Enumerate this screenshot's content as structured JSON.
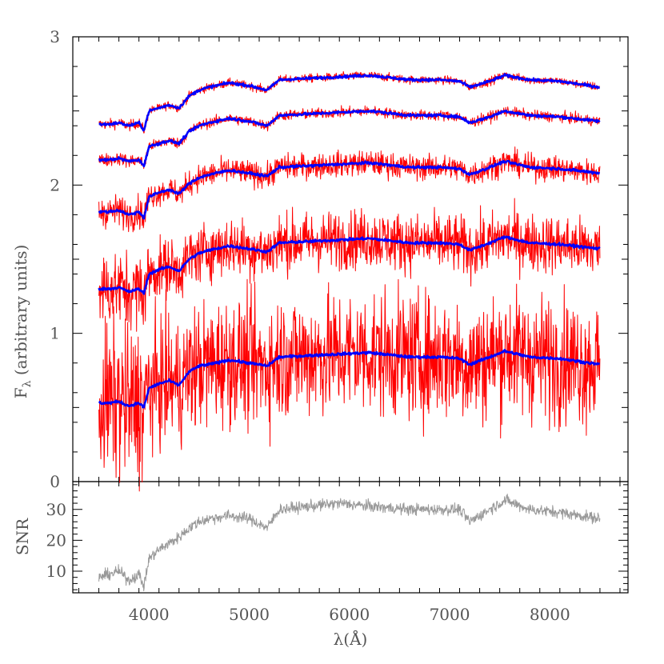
{
  "chart_data": [
    {
      "type": "line",
      "panel": "main",
      "title": "",
      "ylabel": "F_λ (arbitrary units)",
      "ylabel_main": "F",
      "ylabel_sub": "λ",
      "ylabel_rest": " (arbitrary units)",
      "xlabel": "",
      "xlim": [
        3240,
        8780
      ],
      "ylim": [
        0,
        3
      ],
      "yticks": [
        0,
        1,
        2,
        3
      ],
      "grid": false,
      "legend": "none",
      "colors": {
        "noisy": "#ff0000",
        "model": "#0000ff"
      },
      "x_range": [
        3500,
        8500
      ],
      "series": [
        {
          "model_knots": {
            "x": [
              3500,
              3600,
              3700,
              3800,
              3900,
              3950,
              4000,
              4100,
              4200,
              4300,
              4400,
              4500,
              4600,
              4800,
              5000,
              5180,
              5300,
              5600,
              5900,
              6200,
              6600,
              6900,
              7100,
              7200,
              7400,
              7550,
              7800,
              8100,
              8500
            ],
            "y": [
              2.41,
              2.41,
              2.42,
              2.4,
              2.42,
              2.37,
              2.5,
              2.52,
              2.54,
              2.52,
              2.6,
              2.64,
              2.66,
              2.69,
              2.67,
              2.64,
              2.71,
              2.72,
              2.73,
              2.74,
              2.71,
              2.71,
              2.7,
              2.66,
              2.7,
              2.74,
              2.71,
              2.7,
              2.66
            ]
          },
          "noise_amplitude": 0.02
        },
        {
          "model_knots": {
            "x": [
              3500,
              3600,
              3700,
              3800,
              3900,
              3950,
              4000,
              4100,
              4200,
              4300,
              4400,
              4500,
              4600,
              4800,
              5000,
              5180,
              5300,
              5600,
              5900,
              6200,
              6600,
              6900,
              7100,
              7200,
              7400,
              7550,
              7800,
              8100,
              8500
            ],
            "y": [
              2.17,
              2.17,
              2.18,
              2.16,
              2.17,
              2.13,
              2.26,
              2.28,
              2.3,
              2.28,
              2.36,
              2.4,
              2.42,
              2.45,
              2.43,
              2.4,
              2.47,
              2.48,
              2.49,
              2.5,
              2.47,
              2.47,
              2.46,
              2.42,
              2.46,
              2.5,
              2.47,
              2.46,
              2.43
            ]
          },
          "noise_amplitude": 0.025
        },
        {
          "model_knots": {
            "x": [
              3500,
              3600,
              3700,
              3800,
              3900,
              3950,
              4000,
              4100,
              4200,
              4300,
              4400,
              4500,
              4600,
              4800,
              5000,
              5180,
              5300,
              5600,
              5900,
              6200,
              6600,
              6900,
              7100,
              7200,
              7400,
              7550,
              7800,
              8100,
              8500
            ],
            "y": [
              1.82,
              1.82,
              1.83,
              1.8,
              1.82,
              1.78,
              1.92,
              1.95,
              1.97,
              1.94,
              2.01,
              2.05,
              2.07,
              2.1,
              2.08,
              2.06,
              2.12,
              2.13,
              2.14,
              2.15,
              2.12,
              2.12,
              2.11,
              2.07,
              2.12,
              2.16,
              2.12,
              2.11,
              2.08
            ]
          },
          "noise_amplitude": 0.06
        },
        {
          "model_knots": {
            "x": [
              3500,
              3600,
              3700,
              3800,
              3900,
              3950,
              4000,
              4100,
              4200,
              4300,
              4400,
              4500,
              4600,
              4800,
              5000,
              5180,
              5300,
              5600,
              5900,
              6200,
              6600,
              6900,
              7100,
              7200,
              7400,
              7550,
              7800,
              8100,
              8500
            ],
            "y": [
              1.3,
              1.3,
              1.31,
              1.28,
              1.3,
              1.27,
              1.4,
              1.43,
              1.45,
              1.42,
              1.5,
              1.54,
              1.56,
              1.59,
              1.57,
              1.55,
              1.61,
              1.62,
              1.63,
              1.64,
              1.61,
              1.61,
              1.6,
              1.56,
              1.61,
              1.65,
              1.61,
              1.6,
              1.57
            ]
          },
          "noise_amplitude": 0.14
        },
        {
          "model_knots": {
            "x": [
              3500,
              3600,
              3700,
              3800,
              3900,
              3950,
              4000,
              4100,
              4200,
              4300,
              4400,
              4500,
              4600,
              4800,
              5000,
              5180,
              5300,
              5600,
              5900,
              6200,
              6600,
              6900,
              7100,
              7200,
              7400,
              7550,
              7800,
              8100,
              8500
            ],
            "y": [
              0.53,
              0.53,
              0.54,
              0.51,
              0.53,
              0.5,
              0.63,
              0.66,
              0.68,
              0.65,
              0.74,
              0.78,
              0.79,
              0.82,
              0.8,
              0.78,
              0.84,
              0.85,
              0.86,
              0.87,
              0.84,
              0.84,
              0.83,
              0.79,
              0.84,
              0.88,
              0.84,
              0.83,
              0.79
            ]
          },
          "noise_amplitude": 0.3
        }
      ]
    },
    {
      "type": "line",
      "panel": "snr",
      "title": "",
      "ylabel": "SNR",
      "xlabel": "λ(Å)",
      "xlim": [
        3240,
        8780
      ],
      "ylim": [
        3,
        39
      ],
      "xticks": [
        4000,
        5000,
        6000,
        7000,
        8000
      ],
      "yticks": [
        10,
        20,
        30
      ],
      "grid": false,
      "legend": "none",
      "colors": {
        "snr": "#999999"
      },
      "series": [
        {
          "x": [
            3500,
            3600,
            3700,
            3800,
            3900,
            3950,
            4000,
            4100,
            4200,
            4300,
            4400,
            4500,
            4600,
            4800,
            5000,
            5180,
            5300,
            5600,
            5900,
            6200,
            6600,
            6900,
            7100,
            7200,
            7400,
            7550,
            7800,
            8100,
            8500
          ],
          "y": [
            8,
            9,
            10,
            7,
            9,
            5,
            14,
            17,
            19,
            21,
            24,
            26,
            27,
            28,
            27,
            24,
            30,
            31,
            32,
            31,
            30,
            30,
            30,
            26,
            30,
            33,
            30,
            29,
            27
          ],
          "noise_amplitude": 1.3
        }
      ]
    }
  ]
}
